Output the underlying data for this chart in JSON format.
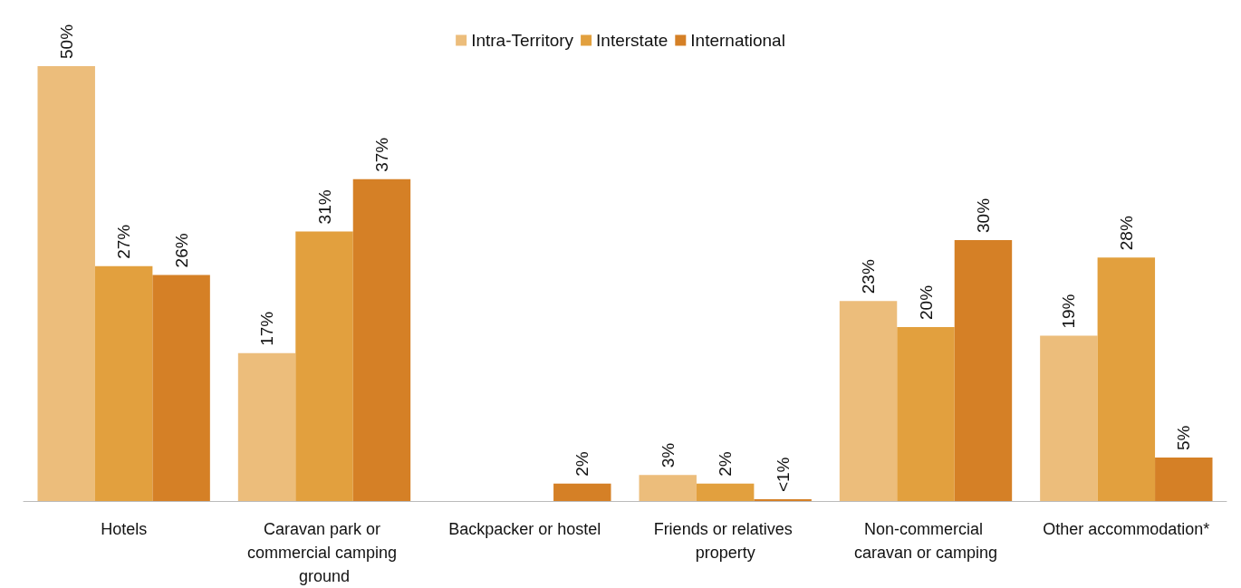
{
  "chart_data": {
    "type": "bar",
    "categories": [
      "Hotels",
      "Caravan park or commercial camping ground",
      "Backpacker or hostel",
      "Friends or relatives property",
      "Non-commercial caravan or camping",
      "Other accommodation*"
    ],
    "series": [
      {
        "name": "Intra-Territory",
        "color": "#ecbd7b",
        "values": [
          50,
          17,
          null,
          3,
          23,
          19
        ],
        "value_labels": [
          "50%",
          "17%",
          null,
          "3%",
          "23%",
          "19%"
        ]
      },
      {
        "name": "Interstate",
        "color": "#e2a03e",
        "values": [
          27,
          31,
          null,
          2,
          20,
          28
        ],
        "value_labels": [
          "27%",
          "31%",
          null,
          "2%",
          "20%",
          "28%"
        ]
      },
      {
        "name": "International",
        "color": "#d58026",
        "values": [
          26,
          37,
          2,
          0.2,
          30,
          5
        ],
        "value_labels": [
          "26%",
          "37%",
          "2%",
          "<1%",
          "30%",
          "5%"
        ]
      }
    ],
    "legend": "top"
  }
}
